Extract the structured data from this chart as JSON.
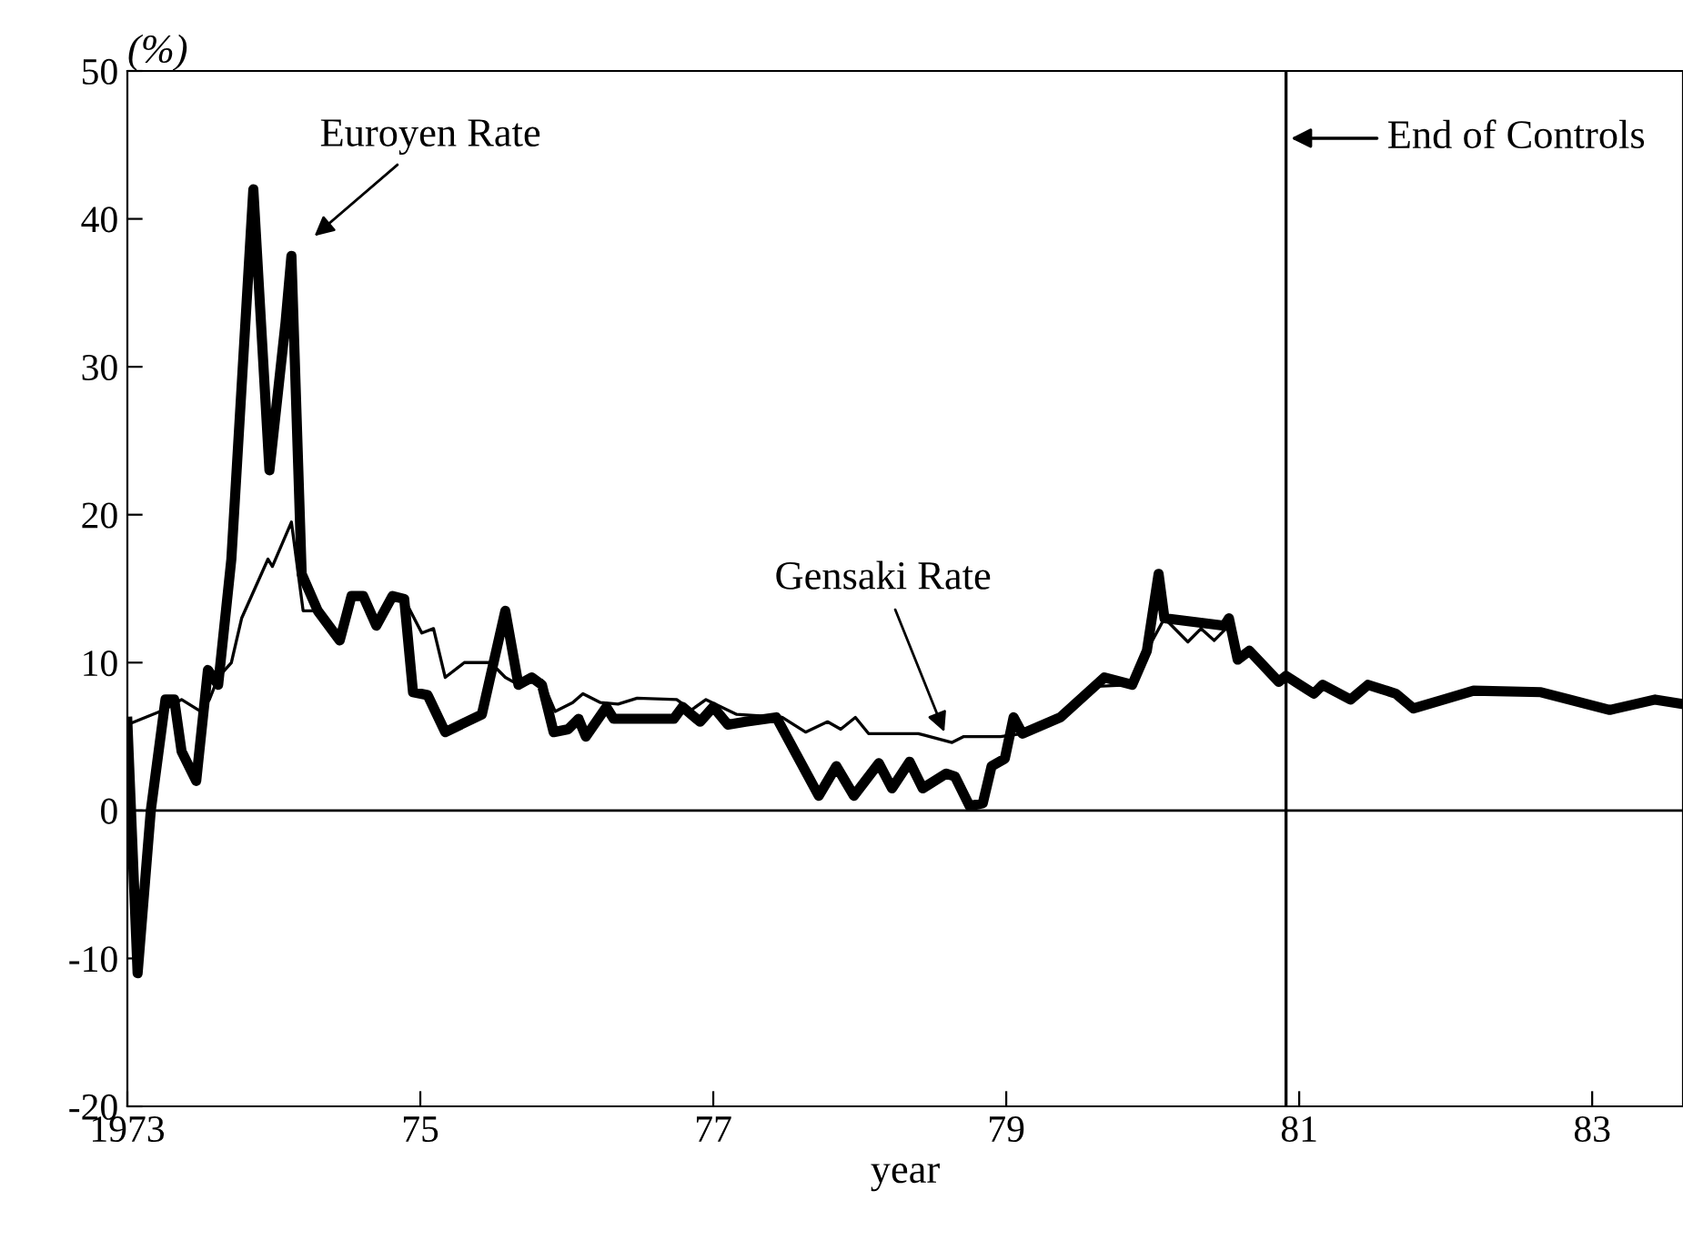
{
  "chart_data": {
    "type": "line",
    "xlabel": "year",
    "ylabel": "(%)",
    "xlim": [
      1973,
      1983.62
    ],
    "xticks": [
      {
        "value": 1973,
        "label": "1973"
      },
      {
        "value": 1975,
        "label": "75"
      },
      {
        "value": 1977,
        "label": "77"
      },
      {
        "value": 1979,
        "label": "79"
      },
      {
        "value": 1981,
        "label": "81"
      },
      {
        "value": 1983,
        "label": "83"
      }
    ],
    "ylim": [
      -20,
      50
    ],
    "yticks": [
      -20,
      -10,
      0,
      10,
      20,
      30,
      40,
      50
    ],
    "grid": false,
    "line_style": "solid",
    "marker": "none",
    "ref_lines": [
      {
        "axis": "x",
        "value": 1980.91,
        "label": "End of Controls"
      },
      {
        "axis": "y",
        "value": 0
      }
    ],
    "annotations": [
      {
        "text": "Euroyen Rate",
        "x": 1974.12,
        "y": 37.5
      },
      {
        "text": "Gensaki Rate",
        "x": 1978.59,
        "y": 5.0
      }
    ],
    "series": [
      {
        "color": "#000000",
        "x": [
          1973.0,
          1973.07,
          1973.16,
          1973.26,
          1973.32,
          1973.37,
          1973.47,
          1973.55,
          1973.62,
          1973.71,
          1973.86,
          1973.97,
          1974.08,
          1974.12,
          1974.19,
          1974.3,
          1974.45,
          1974.53,
          1974.61,
          1974.7,
          1974.81,
          1974.89,
          1974.95,
          1975.05,
          1975.17,
          1975.42,
          1975.58,
          1975.67,
          1975.76,
          1975.83,
          1975.91,
          1976.01,
          1976.08,
          1976.13,
          1976.27,
          1976.32,
          1976.73,
          1976.79,
          1976.91,
          1977.0,
          1977.1,
          1977.22,
          1977.43,
          1977.72,
          1977.84,
          1977.96,
          1978.13,
          1978.22,
          1978.34,
          1978.43,
          1978.59,
          1978.65,
          1978.75,
          1978.84,
          1978.9,
          1978.99,
          1979.05,
          1979.11,
          1979.37,
          1979.67,
          1979.86,
          1979.96,
          1980.04,
          1980.08,
          1980.49,
          1980.52,
          1980.58,
          1980.66,
          1980.86,
          1980.91,
          1981.1,
          1981.16,
          1981.35,
          1981.47,
          1981.66,
          1981.78,
          1982.19,
          1982.65,
          1983.12,
          1983.43,
          1983.62
        ],
        "values": [
          6,
          -11,
          0,
          7.5,
          7.5,
          4,
          2,
          9.5,
          8.5,
          17,
          42,
          23,
          33,
          37.5,
          16,
          13.5,
          11.5,
          14.5,
          14.5,
          12.5,
          14.5,
          14.3,
          8,
          7.8,
          5.3,
          6.5,
          13.5,
          8.5,
          9,
          8.5,
          5.3,
          5.5,
          6.2,
          5,
          7,
          6.2,
          6.2,
          7,
          6,
          7,
          5.8,
          6,
          6.3,
          1,
          3,
          1,
          3.2,
          1.5,
          3.3,
          1.5,
          2.5,
          2.3,
          0.3,
          0.5,
          3,
          3.5,
          6.3,
          5.2,
          6.3,
          9,
          8.5,
          10.8,
          16,
          13,
          12.5,
          13,
          10.2,
          10.8,
          8.7,
          9.1,
          7.9,
          8.5,
          7.5,
          8.5,
          7.9,
          6.9,
          8.1,
          8,
          6.8,
          7.5,
          7.2
        ]
      },
      {
        "color": "#000000",
        "x": [
          1973.0,
          1973.25,
          1973.37,
          1973.5,
          1973.56,
          1973.62,
          1973.71,
          1973.78,
          1973.96,
          1973.99,
          1974.12,
          1974.2,
          1974.3,
          1974.45,
          1974.53,
          1974.61,
          1974.7,
          1974.81,
          1974.89,
          1975.01,
          1975.09,
          1975.17,
          1975.3,
          1975.48,
          1975.58,
          1975.67,
          1975.83,
          1975.92,
          1976.04,
          1976.11,
          1976.23,
          1976.35,
          1976.48,
          1976.75,
          1976.85,
          1976.95,
          1977.16,
          1977.47,
          1977.63,
          1977.78,
          1977.87,
          1977.97,
          1978.06,
          1978.4,
          1978.63,
          1978.71,
          1978.96,
          1979.11,
          1979.37,
          1979.62,
          1979.86,
          1979.96,
          1980.08,
          1980.24,
          1980.33,
          1980.42,
          1980.52,
          1980.58,
          1980.66,
          1980.86,
          1980.91,
          1981.1,
          1981.16,
          1981.35,
          1981.47,
          1981.66,
          1981.78,
          1982.19,
          1982.65,
          1983.12,
          1983.43,
          1983.62
        ],
        "values": [
          5.8,
          6.8,
          7.5,
          6.7,
          7.5,
          9,
          10,
          13,
          17,
          16.5,
          19.5,
          13.5,
          13.5,
          11.5,
          14.5,
          14.5,
          12.5,
          14.5,
          14.3,
          12,
          12.3,
          9,
          10,
          10,
          9,
          8.5,
          8.8,
          6.7,
          7.3,
          7.9,
          7.3,
          7.2,
          7.6,
          7.5,
          6.8,
          7.5,
          6.5,
          6.3,
          5.3,
          6,
          5.5,
          6.3,
          5.2,
          5.2,
          4.6,
          5,
          5,
          5.2,
          6.3,
          8.4,
          8.5,
          10.8,
          13,
          11.4,
          12.3,
          11.5,
          12.5,
          10.2,
          10.8,
          8.7,
          9.1,
          7.9,
          8.5,
          7.5,
          8.5,
          7.9,
          6.9,
          8.1,
          8,
          6.8,
          7.5,
          7.2
        ]
      }
    ]
  }
}
